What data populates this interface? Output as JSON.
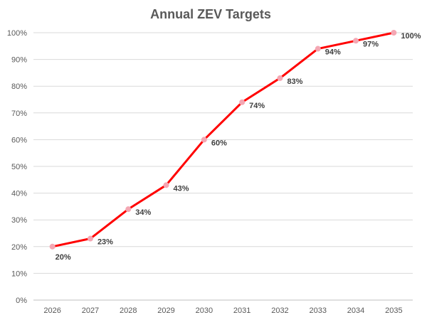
{
  "chart_data": {
    "type": "line",
    "title": "Annual ZEV Targets",
    "xlabel": "",
    "ylabel": "",
    "categories": [
      "2026",
      "2027",
      "2028",
      "2029",
      "2030",
      "2031",
      "2032",
      "2033",
      "2034",
      "2035"
    ],
    "series": [
      {
        "values": [
          20,
          23,
          34,
          43,
          60,
          74,
          83,
          94,
          97,
          100
        ],
        "labels": [
          "20%",
          "23%",
          "34%",
          "43%",
          "60%",
          "74%",
          "83%",
          "94%",
          "97%",
          "100%"
        ],
        "color": "#ff0000",
        "marker_color": "#f4a7b3"
      }
    ],
    "ylim": [
      0,
      100
    ],
    "y_ticks": [
      "0%",
      "10%",
      "20%",
      "30%",
      "40%",
      "50%",
      "60%",
      "70%",
      "80%",
      "90%",
      "100%"
    ],
    "grid": true,
    "legend": "none"
  }
}
